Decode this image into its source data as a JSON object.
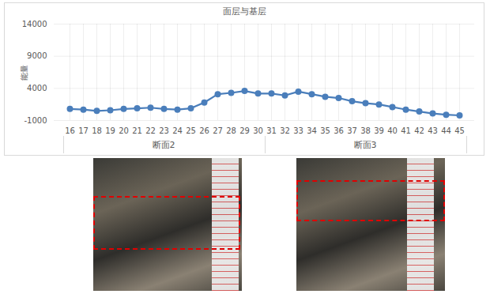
{
  "chart_data": {
    "type": "line",
    "title": "面层与基层",
    "y_label": "能量",
    "categories": [
      "16",
      "17",
      "18",
      "19",
      "20",
      "21",
      "22",
      "23",
      "24",
      "25",
      "26",
      "27",
      "28",
      "29",
      "30",
      "31",
      "32",
      "33",
      "34",
      "35",
      "36",
      "37",
      "38",
      "39",
      "40",
      "41",
      "42",
      "43",
      "44",
      "45"
    ],
    "series": [
      {
        "name": "面层与基层",
        "color": "#4a7ebb",
        "marker": "circle",
        "line_style": "solid",
        "values": [
          800,
          700,
          500,
          600,
          800,
          900,
          1000,
          800,
          700,
          900,
          1800,
          3100,
          3300,
          3600,
          3200,
          3200,
          2900,
          3500,
          3100,
          2700,
          2500,
          2000,
          1700,
          1500,
          1100,
          700,
          400,
          100,
          -100,
          -200
        ]
      }
    ],
    "x_groups": [
      {
        "name": "断面2",
        "from": "16",
        "to": "30"
      },
      {
        "name": "断面3",
        "from": "31",
        "to": "45"
      }
    ],
    "ylim": [
      -1000,
      14000
    ],
    "yticks": [
      -1000,
      4000,
      9000,
      14000
    ],
    "grid": true
  }
}
